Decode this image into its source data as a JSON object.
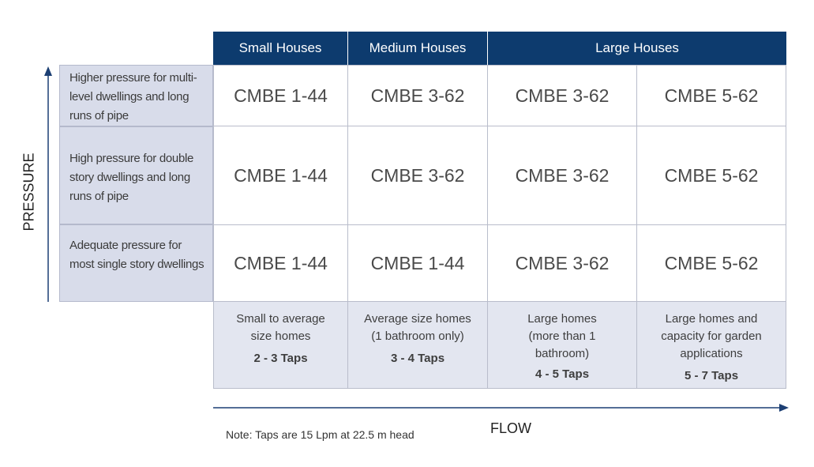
{
  "columns": [
    "Small Houses",
    "Medium Houses",
    "Large Houses"
  ],
  "rows": [
    {
      "label": "Higher pressure for multi-level dwellings and long runs of pipe",
      "values": [
        "CMBE 1-44",
        "CMBE 3-62",
        "CMBE 3-62",
        "CMBE 5-62"
      ]
    },
    {
      "label": "High pressure for double story dwellings and long runs of pipe",
      "values": [
        "CMBE 1-44",
        "CMBE 3-62",
        "CMBE 3-62",
        "CMBE 5-62"
      ]
    },
    {
      "label": "Adequate pressure for most single story dwellings",
      "values": [
        "CMBE 1-44",
        "CMBE 1-44",
        "CMBE 3-62",
        "CMBE 5-62"
      ]
    }
  ],
  "footer": [
    {
      "desc": "Small to average size homes",
      "taps": "2 - 3 Taps"
    },
    {
      "desc": "Average size homes (1 bathroom only)",
      "taps": "3 - 4 Taps"
    },
    {
      "desc": "Large homes (more than 1 bathroom)",
      "taps": "4 - 5 Taps"
    },
    {
      "desc": "Large homes and capacity for garden applications",
      "taps": "5 - 7 Taps"
    }
  ],
  "axes": {
    "y_label": "PRESSURE",
    "x_label": "FLOW"
  },
  "note": "Note: Taps are 15 Lpm at 22.5 m head",
  "colors": {
    "header": "#0d3b6e",
    "row_label_bg": "#d8dcea",
    "footer_bg": "#e3e6f0"
  }
}
